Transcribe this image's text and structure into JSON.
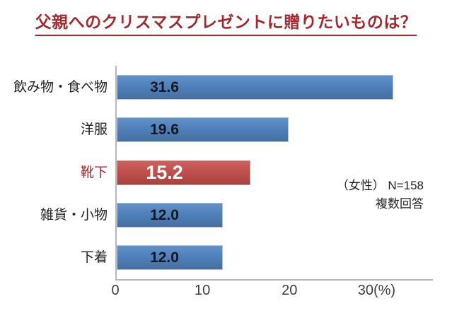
{
  "title": "父親へのクリスマスプレゼントに贈りたいものは？",
  "chart_data": {
    "type": "bar",
    "orientation": "horizontal",
    "title": "父親へのクリスマスプレゼントに贈りたいものは？",
    "categories": [
      "飲み物・食べ物",
      "洋服",
      "靴下",
      "雑貨・小物",
      "下着"
    ],
    "values": [
      31.6,
      19.6,
      15.2,
      12.0,
      12.0
    ],
    "rows": [
      {
        "label": "飲み物・食べ物",
        "value": 31.6,
        "display": "31.6",
        "highlight": false
      },
      {
        "label": "洋服",
        "value": 19.6,
        "display": "19.6",
        "highlight": false
      },
      {
        "label": "靴下",
        "value": 15.2,
        "display": "15.2",
        "highlight": true
      },
      {
        "label": "雑貨・小物",
        "value": 12.0,
        "display": "12.0",
        "highlight": false
      },
      {
        "label": "下着",
        "value": 12.0,
        "display": "12.0",
        "highlight": false
      }
    ],
    "xlim": [
      0,
      36.3
    ],
    "x_ticks": [
      0,
      10,
      20,
      30
    ],
    "x_tick_labels": [
      "0",
      "10",
      "20",
      "30(%)"
    ],
    "unit": "%",
    "grid": false,
    "legend": "none",
    "annotation": {
      "line1": "（女性） N=158",
      "line2": "複数回答"
    },
    "colors": {
      "bar": "#4F81BD",
      "highlight_bar": "#C0504D",
      "title": "#A12A2F",
      "highlight_label": "#A12A2F",
      "axis_line": "#B7B7B7"
    }
  }
}
